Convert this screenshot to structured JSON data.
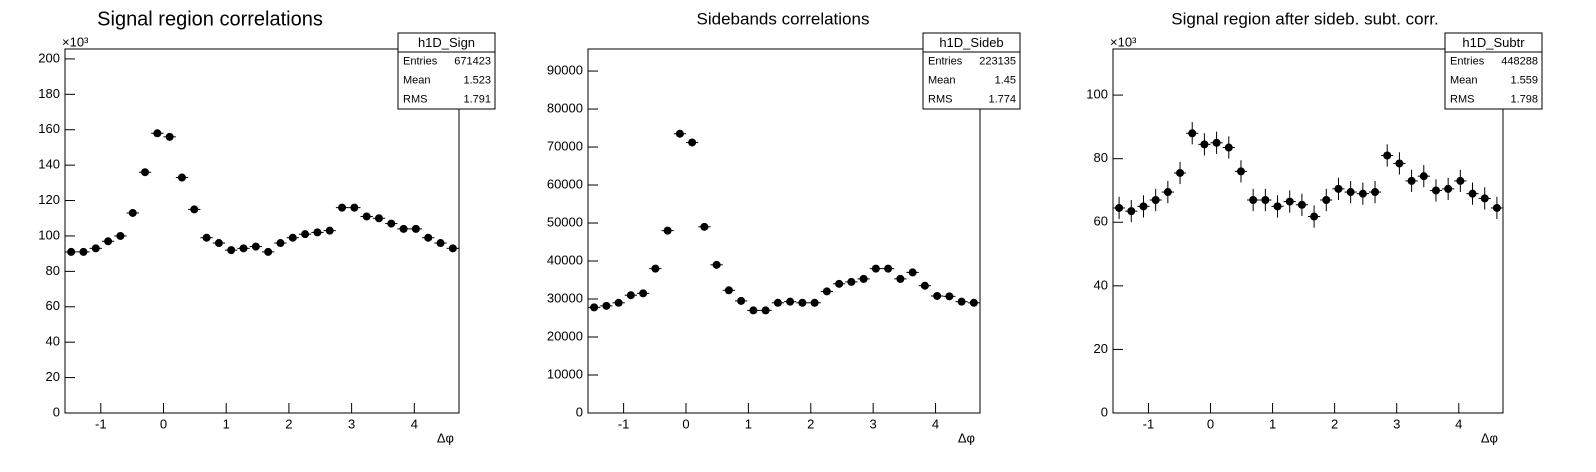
{
  "chart_data": [
    {
      "type": "histogram",
      "title": "Signal region correlations",
      "x_label": "Δφ",
      "y_multiplier": "×10³",
      "bins": [
        -1.5708,
        -1.3744,
        -1.1781,
        -0.9817,
        -0.7854,
        -0.589,
        -0.3927,
        -0.1963,
        0,
        0.1963,
        0.3927,
        0.589,
        0.7854,
        0.9817,
        1.1781,
        1.3744,
        1.5708,
        1.7671,
        1.9635,
        2.1598,
        2.3562,
        2.5525,
        2.7489,
        2.9452,
        3.1416,
        3.3379,
        3.5343,
        3.7306,
        3.927,
        4.1233,
        4.3197,
        4.516,
        4.7124
      ],
      "values": [
        91,
        91,
        93,
        97,
        100,
        113,
        136,
        158,
        156,
        133,
        115,
        99,
        96,
        92,
        93,
        94,
        91,
        96,
        99,
        101,
        102,
        103,
        116,
        116,
        111,
        110,
        107,
        104,
        104,
        99,
        96,
        93
      ],
      "color": "#000000",
      "xlim": [
        -1.5708,
        4.7124
      ],
      "ylim": [
        0,
        205.6
      ],
      "xticks": [
        -1,
        0,
        1,
        2,
        3,
        4
      ],
      "yticks": [
        0,
        20,
        40,
        60,
        80,
        100,
        120,
        140,
        160,
        180,
        200
      ],
      "stats": {
        "name": "h1D_Sign",
        "labels": [
          "Entries",
          "Mean",
          "RMS"
        ],
        "values": [
          671423,
          1.523,
          1.791
        ]
      }
    },
    {
      "type": "histogram",
      "title": "Sidebands correlations",
      "x_label": "Δφ",
      "bins": [
        -1.5708,
        -1.3744,
        -1.1781,
        -0.9817,
        -0.7854,
        -0.589,
        -0.3927,
        -0.1963,
        0,
        0.1963,
        0.3927,
        0.589,
        0.7854,
        0.9817,
        1.1781,
        1.3744,
        1.5708,
        1.7671,
        1.9635,
        2.1598,
        2.3562,
        2.5525,
        2.7489,
        2.9452,
        3.1416,
        3.3379,
        3.5343,
        3.7306,
        3.927,
        4.1233,
        4.3197,
        4.516,
        4.7124
      ],
      "values": [
        27800,
        28200,
        29000,
        31000,
        31500,
        38000,
        48000,
        73500,
        71200,
        49000,
        39000,
        32300,
        29500,
        27000,
        27000,
        29000,
        29300,
        29000,
        29000,
        32000,
        34000,
        34500,
        35300,
        38000,
        38000,
        35300,
        37000,
        33500,
        30800,
        30700,
        29300,
        29000
      ],
      "color": "#000000",
      "xlim": [
        -1.5708,
        4.7124
      ],
      "ylim": [
        0,
        95800
      ],
      "xticks": [
        -1,
        0,
        1,
        2,
        3,
        4
      ],
      "yticks": [
        0,
        10000,
        20000,
        30000,
        40000,
        50000,
        60000,
        70000,
        80000,
        90000
      ],
      "stats": {
        "name": "h1D_Sideb",
        "labels": [
          "Entries",
          "Mean",
          "RMS"
        ],
        "values": [
          223135,
          1.45,
          1.774
        ]
      }
    },
    {
      "type": "histogram",
      "title": "Signal region after sideb. subt. corr.",
      "x_label": "Δφ",
      "y_multiplier": "×10³",
      "bins": [
        -1.5708,
        -1.3744,
        -1.1781,
        -0.9817,
        -0.7854,
        -0.589,
        -0.3927,
        -0.1963,
        0,
        0.1963,
        0.3927,
        0.589,
        0.7854,
        0.9817,
        1.1781,
        1.3744,
        1.5708,
        1.7671,
        1.9635,
        2.1598,
        2.3562,
        2.5525,
        2.7489,
        2.9452,
        3.1416,
        3.3379,
        3.5343,
        3.7306,
        3.927,
        4.1233,
        4.3197,
        4.516,
        4.7124
      ],
      "values": [
        64.5,
        63.5,
        65,
        67,
        69.5,
        75.5,
        88,
        84.5,
        85,
        83.5,
        76,
        67,
        67,
        65,
        66.5,
        65.5,
        61.8,
        67,
        70.5,
        69.5,
        69,
        69.5,
        81,
        78.5,
        73,
        74.5,
        70,
        70.5,
        73,
        69,
        67.5,
        64.5
      ],
      "errors": [
        3.5,
        3.5,
        3.5,
        3.5,
        3.5,
        3.5,
        3.5,
        3.5,
        3.5,
        3.5,
        3.5,
        3.5,
        3.5,
        3.5,
        3.5,
        3.5,
        3.5,
        3.5,
        3.5,
        3.5,
        3.5,
        3.5,
        3.5,
        3.5,
        3.5,
        3.5,
        3.5,
        3.5,
        3.5,
        3.5,
        3.5,
        3.5
      ],
      "color": "#000000",
      "xlim": [
        -1.5708,
        4.7124
      ],
      "ylim": [
        0,
        114.5
      ],
      "xticks": [
        -1,
        0,
        1,
        2,
        3,
        4
      ],
      "yticks": [
        0,
        20,
        40,
        60,
        80,
        100
      ],
      "stats": {
        "name": "h1D_Subtr",
        "labels": [
          "Entries",
          "Mean",
          "RMS"
        ],
        "values": [
          448288,
          1.559,
          1.798
        ]
      }
    }
  ]
}
